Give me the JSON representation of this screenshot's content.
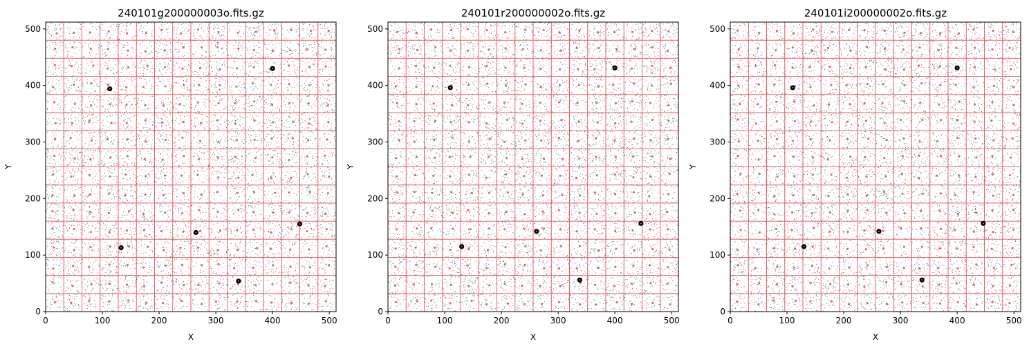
{
  "figure": {
    "panels": [
      {
        "title": "240101g200000003o.fits.gz"
      },
      {
        "title": "240101r200000002o.fits.gz"
      },
      {
        "title": "240101i200000002o.fits.gz"
      }
    ]
  },
  "chart_data": [
    {
      "type": "scatter",
      "title": "240101g200000003o.fits.gz",
      "xlabel": "X",
      "ylabel": "Y",
      "xlim": [
        0,
        512
      ],
      "ylim": [
        0,
        512
      ],
      "xticks": [
        0,
        100,
        200,
        300,
        400,
        500
      ],
      "yticks": [
        0,
        100,
        200,
        300,
        400,
        500
      ],
      "grid_lines": [
        0,
        32,
        64,
        96,
        128,
        160,
        192,
        224,
        256,
        288,
        320,
        352,
        384,
        416,
        448,
        480,
        512
      ],
      "grid_color": "#e8474a",
      "noise_color": "#2b2b2b",
      "marker_color": "#e8474a",
      "bright_sources": [
        [
          113,
          394
        ],
        [
          400,
          430
        ],
        [
          133,
          113
        ],
        [
          265,
          140
        ],
        [
          448,
          155
        ],
        [
          340,
          54
        ]
      ]
    },
    {
      "type": "scatter",
      "title": "240101r200000002o.fits.gz",
      "xlabel": "X",
      "ylabel": "Y",
      "xlim": [
        0,
        512
      ],
      "ylim": [
        0,
        512
      ],
      "xticks": [
        0,
        100,
        200,
        300,
        400,
        500
      ],
      "yticks": [
        0,
        100,
        200,
        300,
        400,
        500
      ],
      "grid_lines": [
        0,
        32,
        64,
        96,
        128,
        160,
        192,
        224,
        256,
        288,
        320,
        352,
        384,
        416,
        448,
        480,
        512
      ],
      "grid_color": "#e8474a",
      "noise_color": "#2b2b2b",
      "marker_color": "#e8474a",
      "bright_sources": [
        [
          110,
          396
        ],
        [
          400,
          431
        ],
        [
          130,
          115
        ],
        [
          262,
          142
        ],
        [
          446,
          156
        ],
        [
          338,
          56
        ]
      ]
    },
    {
      "type": "scatter",
      "title": "240101i200000002o.fits.gz",
      "xlabel": "X",
      "ylabel": "Y",
      "xlim": [
        0,
        512
      ],
      "ylim": [
        0,
        512
      ],
      "xticks": [
        0,
        100,
        200,
        300,
        400,
        500
      ],
      "yticks": [
        0,
        100,
        200,
        300,
        400,
        500
      ],
      "grid_lines": [
        0,
        32,
        64,
        96,
        128,
        160,
        192,
        224,
        256,
        288,
        320,
        352,
        384,
        416,
        448,
        480,
        512
      ],
      "grid_color": "#e8474a",
      "noise_color": "#2b2b2b",
      "marker_color": "#e8474a",
      "bright_sources": [
        [
          110,
          396
        ],
        [
          400,
          431
        ],
        [
          130,
          115
        ],
        [
          262,
          142
        ],
        [
          446,
          156
        ],
        [
          338,
          56
        ]
      ]
    }
  ]
}
